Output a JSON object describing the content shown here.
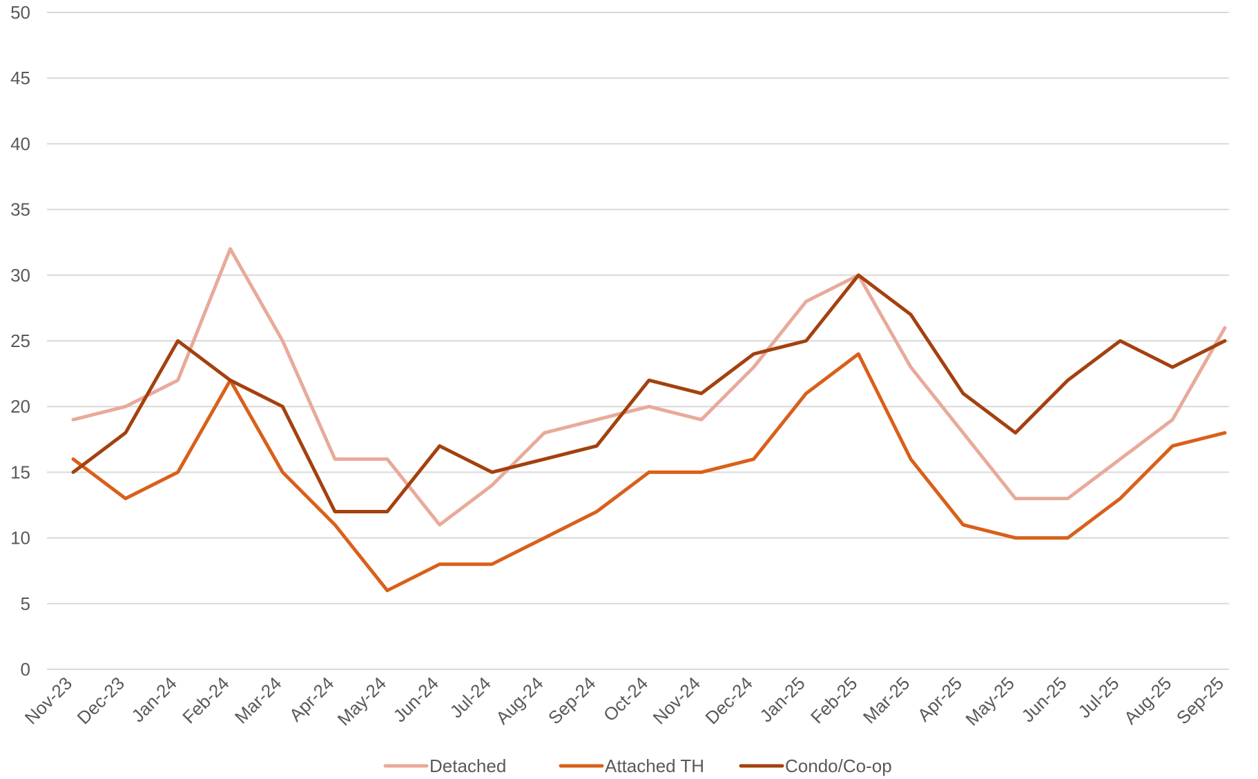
{
  "chart_data": {
    "type": "line",
    "title": "",
    "xlabel": "",
    "ylabel": "",
    "ylim": [
      0,
      50
    ],
    "yticks": [
      "0",
      "5",
      "10",
      "15",
      "20",
      "25",
      "30",
      "35",
      "40",
      "45",
      "50"
    ],
    "grid": true,
    "legend_position": "bottom",
    "categories": [
      "Nov-23",
      "Dec-23",
      "Jan-24",
      "Feb-24",
      "Mar-24",
      "Apr-24",
      "May-24",
      "Jun-24",
      "Jul-24",
      "Aug-24",
      "Sep-24",
      "Oct-24",
      "Nov-24",
      "Dec-24",
      "Jan-25",
      "Feb-25",
      "Mar-25",
      "Apr-25",
      "May-25",
      "Jun-25",
      "Jul-25",
      "Aug-25",
      "Sep-25"
    ],
    "series": [
      {
        "name": "Detached",
        "color": "#e8aa9a",
        "values": [
          19,
          20,
          22,
          32,
          25,
          16,
          16,
          11,
          14,
          18,
          19,
          20,
          19,
          23,
          28,
          30,
          23,
          18,
          13,
          13,
          16,
          19,
          26
        ]
      },
      {
        "name": "Attached TH",
        "color": "#d9601a",
        "values": [
          16,
          13,
          15,
          22,
          15,
          11,
          6,
          8,
          8,
          10,
          12,
          15,
          15,
          16,
          21,
          24,
          16,
          11,
          10,
          10,
          13,
          17,
          18
        ]
      },
      {
        "name": "Condo/Co-op",
        "color": "#a3410f",
        "values": [
          15,
          18,
          25,
          22,
          20,
          12,
          12,
          17,
          15,
          16,
          17,
          22,
          21,
          24,
          25,
          30,
          27,
          21,
          18,
          22,
          25,
          23,
          25
        ]
      }
    ]
  }
}
